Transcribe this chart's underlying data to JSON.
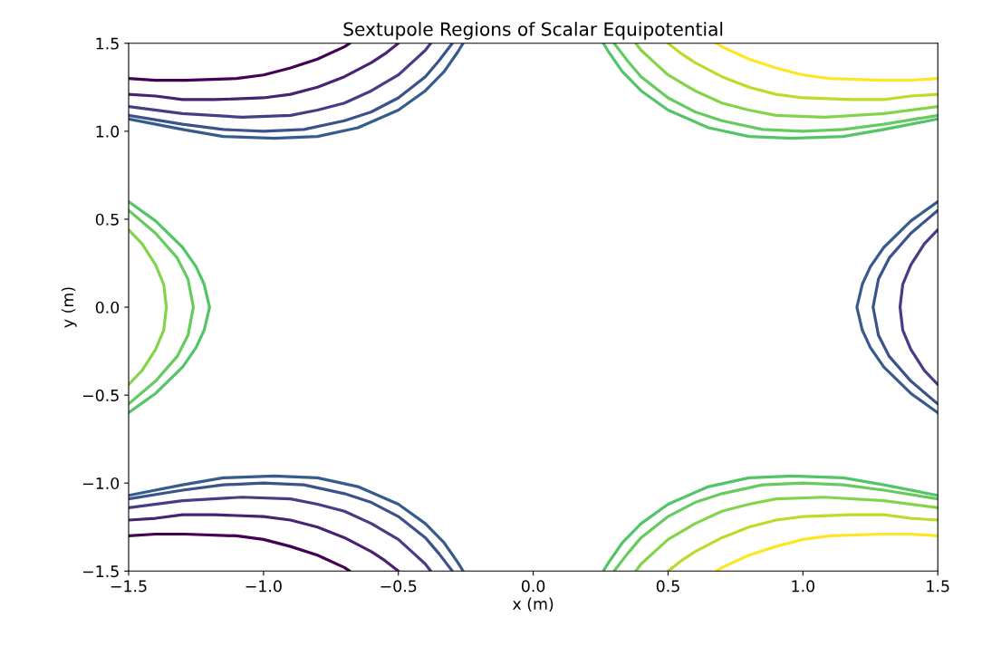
{
  "chart_data": {
    "type": "line",
    "title": "Sextupole Regions of Scalar Equipotential",
    "xlabel": "x (m)",
    "ylabel": "y (m)",
    "xlim": [
      -1.5,
      1.5
    ],
    "ylim": [
      -1.5,
      1.5
    ],
    "xticks": [
      {
        "value": -1.5,
        "label": "−1.5"
      },
      {
        "value": -1.0,
        "label": "−1.0"
      },
      {
        "value": -0.5,
        "label": "−0.5"
      },
      {
        "value": 0,
        "label": "0.0"
      },
      {
        "value": 0.5,
        "label": "0.5"
      },
      {
        "value": 1.0,
        "label": "1.0"
      },
      {
        "value": 1.5,
        "label": "1.5"
      }
    ],
    "yticks": [
      {
        "value": -1.5,
        "label": "−1.5"
      },
      {
        "value": -1.0,
        "label": "−1.0"
      },
      {
        "value": -0.5,
        "label": "−0.5"
      },
      {
        "value": 0,
        "label": "0.0"
      },
      {
        "value": 0.5,
        "label": "0.5"
      },
      {
        "value": 1.0,
        "label": "1.0"
      },
      {
        "value": 1.5,
        "label": "1.5"
      }
    ],
    "grid": false,
    "marker": "none",
    "line_style": "solid",
    "series": [
      {
        "color": "#440154",
        "x": [
          -1.5,
          -1.4,
          -1.29,
          -1.1,
          -1.0,
          -0.9,
          -0.8,
          -0.7,
          -0.68
        ],
        "values": [
          1.3,
          1.29,
          1.29,
          1.3,
          1.32,
          1.36,
          1.41,
          1.48,
          1.5
        ]
      },
      {
        "color": "#482374",
        "x": [
          -1.5,
          -1.4,
          -1.3,
          -1.18,
          -1.0,
          -0.9,
          -0.8,
          -0.7,
          -0.6,
          -0.55,
          -0.5
        ],
        "values": [
          1.21,
          1.2,
          1.18,
          1.18,
          1.19,
          1.21,
          1.25,
          1.31,
          1.39,
          1.44,
          1.5
        ]
      },
      {
        "color": "#433e85",
        "x": [
          -1.5,
          -1.3,
          -1.08,
          -0.9,
          -0.8,
          -0.7,
          -0.6,
          -0.5,
          -0.45,
          -0.4,
          -0.38
        ],
        "values": [
          1.14,
          1.1,
          1.08,
          1.09,
          1.12,
          1.16,
          1.23,
          1.32,
          1.39,
          1.46,
          1.5
        ]
      },
      {
        "color": "#3b528b",
        "x": [
          -1.5,
          -1.3,
          -1.15,
          -1.0,
          -0.85,
          -0.7,
          -0.6,
          -0.5,
          -0.4,
          -0.35,
          -0.3
        ],
        "values": [
          1.09,
          1.04,
          1.01,
          1.0,
          1.01,
          1.06,
          1.11,
          1.19,
          1.31,
          1.4,
          1.5
        ]
      },
      {
        "color": "#365c8d",
        "x": [
          -1.5,
          -1.3,
          -1.15,
          -0.96,
          -0.8,
          -0.65,
          -0.5,
          -0.4,
          -0.33,
          -0.28,
          -0.26
        ],
        "values": [
          1.07,
          1.01,
          0.97,
          0.96,
          0.97,
          1.02,
          1.12,
          1.23,
          1.34,
          1.45,
          1.5
        ]
      },
      {
        "color": "#440154",
        "x": [
          -1.5,
          -1.4,
          -1.29,
          -1.1,
          -1.0,
          -0.9,
          -0.8,
          -0.7,
          -0.68
        ],
        "values": [
          -1.3,
          -1.29,
          -1.29,
          -1.3,
          -1.32,
          -1.36,
          -1.41,
          -1.48,
          -1.5
        ]
      },
      {
        "color": "#482374",
        "x": [
          -1.5,
          -1.4,
          -1.3,
          -1.18,
          -1.0,
          -0.9,
          -0.8,
          -0.7,
          -0.6,
          -0.55,
          -0.5
        ],
        "values": [
          -1.21,
          -1.2,
          -1.18,
          -1.18,
          -1.19,
          -1.21,
          -1.25,
          -1.31,
          -1.39,
          -1.44,
          -1.5
        ]
      },
      {
        "color": "#433e85",
        "x": [
          -1.5,
          -1.3,
          -1.08,
          -0.9,
          -0.8,
          -0.7,
          -0.6,
          -0.5,
          -0.45,
          -0.4,
          -0.38
        ],
        "values": [
          -1.14,
          -1.1,
          -1.08,
          -1.09,
          -1.12,
          -1.16,
          -1.23,
          -1.32,
          -1.39,
          -1.46,
          -1.5
        ]
      },
      {
        "color": "#3b528b",
        "x": [
          -1.5,
          -1.3,
          -1.15,
          -1.0,
          -0.85,
          -0.7,
          -0.6,
          -0.5,
          -0.4,
          -0.35,
          -0.3
        ],
        "values": [
          -1.09,
          -1.04,
          -1.01,
          -1.0,
          -1.01,
          -1.06,
          -1.11,
          -1.19,
          -1.31,
          -1.4,
          -1.5
        ]
      },
      {
        "color": "#365c8d",
        "x": [
          -1.5,
          -1.3,
          -1.15,
          -0.96,
          -0.8,
          -0.65,
          -0.5,
          -0.4,
          -0.33,
          -0.28,
          -0.26
        ],
        "values": [
          -1.07,
          -1.01,
          -0.97,
          -0.96,
          -0.97,
          -1.02,
          -1.12,
          -1.23,
          -1.34,
          -1.45,
          -1.5
        ]
      },
      {
        "color": "#fde725",
        "x": [
          1.5,
          1.4,
          1.29,
          1.1,
          1.0,
          0.9,
          0.8,
          0.7,
          0.68
        ],
        "values": [
          1.3,
          1.29,
          1.29,
          1.3,
          1.32,
          1.36,
          1.41,
          1.48,
          1.5
        ]
      },
      {
        "color": "#b8de29",
        "x": [
          1.5,
          1.4,
          1.3,
          1.18,
          1.0,
          0.9,
          0.8,
          0.7,
          0.6,
          0.55,
          0.5
        ],
        "values": [
          1.21,
          1.2,
          1.18,
          1.18,
          1.19,
          1.21,
          1.25,
          1.31,
          1.39,
          1.44,
          1.5
        ]
      },
      {
        "color": "#84d44b",
        "x": [
          1.5,
          1.3,
          1.08,
          0.9,
          0.8,
          0.7,
          0.6,
          0.5,
          0.45,
          0.4,
          0.38
        ],
        "values": [
          1.14,
          1.1,
          1.08,
          1.09,
          1.12,
          1.16,
          1.23,
          1.32,
          1.39,
          1.46,
          1.5
        ]
      },
      {
        "color": "#65cb5e",
        "x": [
          1.5,
          1.3,
          1.15,
          1.0,
          0.85,
          0.7,
          0.6,
          0.5,
          0.4,
          0.35,
          0.3
        ],
        "values": [
          1.09,
          1.04,
          1.01,
          1.0,
          1.01,
          1.06,
          1.11,
          1.19,
          1.31,
          1.4,
          1.5
        ]
      },
      {
        "color": "#52c569",
        "x": [
          1.5,
          1.3,
          1.15,
          0.96,
          0.8,
          0.65,
          0.5,
          0.4,
          0.33,
          0.28,
          0.26
        ],
        "values": [
          1.07,
          1.01,
          0.97,
          0.96,
          0.97,
          1.02,
          1.12,
          1.23,
          1.34,
          1.45,
          1.5
        ]
      },
      {
        "color": "#fde725",
        "x": [
          1.5,
          1.4,
          1.29,
          1.1,
          1.0,
          0.9,
          0.8,
          0.7,
          0.68
        ],
        "values": [
          -1.3,
          -1.29,
          -1.29,
          -1.3,
          -1.32,
          -1.36,
          -1.41,
          -1.48,
          -1.5
        ]
      },
      {
        "color": "#b8de29",
        "x": [
          1.5,
          1.4,
          1.3,
          1.18,
          1.0,
          0.9,
          0.8,
          0.7,
          0.6,
          0.55,
          0.5
        ],
        "values": [
          -1.21,
          -1.2,
          -1.18,
          -1.18,
          -1.19,
          -1.21,
          -1.25,
          -1.31,
          -1.39,
          -1.44,
          -1.5
        ]
      },
      {
        "color": "#84d44b",
        "x": [
          1.5,
          1.3,
          1.08,
          0.9,
          0.8,
          0.7,
          0.6,
          0.5,
          0.45,
          0.4,
          0.38
        ],
        "values": [
          -1.14,
          -1.1,
          -1.08,
          -1.09,
          -1.12,
          -1.16,
          -1.23,
          -1.32,
          -1.39,
          -1.46,
          -1.5
        ]
      },
      {
        "color": "#65cb5e",
        "x": [
          1.5,
          1.3,
          1.15,
          1.0,
          0.85,
          0.7,
          0.6,
          0.5,
          0.4,
          0.35,
          0.3
        ],
        "values": [
          -1.09,
          -1.04,
          -1.01,
          -1.0,
          -1.01,
          -1.06,
          -1.11,
          -1.19,
          -1.31,
          -1.4,
          -1.5
        ]
      },
      {
        "color": "#52c569",
        "x": [
          1.5,
          1.3,
          1.15,
          0.96,
          0.8,
          0.65,
          0.5,
          0.4,
          0.33,
          0.28,
          0.26
        ],
        "values": [
          -1.07,
          -1.01,
          -0.97,
          -0.96,
          -0.97,
          -1.02,
          -1.12,
          -1.23,
          -1.34,
          -1.45,
          -1.5
        ]
      },
      {
        "color": "#52c569",
        "x": [
          -1.5,
          -1.4,
          -1.3,
          -1.25,
          -1.22,
          -1.2,
          -1.22,
          -1.25,
          -1.3,
          -1.4,
          -1.5
        ],
        "values": [
          -0.6,
          -0.49,
          -0.34,
          -0.23,
          -0.13,
          0,
          0.13,
          0.23,
          0.34,
          0.49,
          0.6
        ]
      },
      {
        "color": "#65cb5e",
        "x": [
          -1.5,
          -1.4,
          -1.32,
          -1.28,
          -1.26,
          -1.28,
          -1.32,
          -1.4,
          -1.5
        ],
        "values": [
          -0.55,
          -0.42,
          -0.28,
          -0.16,
          0,
          0.16,
          0.28,
          0.42,
          0.55
        ]
      },
      {
        "color": "#84d44b",
        "x": [
          -1.5,
          -1.45,
          -1.4,
          -1.37,
          -1.36,
          -1.37,
          -1.4,
          -1.45,
          -1.5
        ],
        "values": [
          -0.44,
          -0.36,
          -0.24,
          -0.13,
          0,
          0.13,
          0.24,
          0.36,
          0.44
        ]
      },
      {
        "color": "#365c8d",
        "x": [
          1.5,
          1.4,
          1.3,
          1.25,
          1.22,
          1.2,
          1.22,
          1.25,
          1.3,
          1.4,
          1.5
        ],
        "values": [
          -0.6,
          -0.49,
          -0.34,
          -0.23,
          -0.13,
          0,
          0.13,
          0.23,
          0.34,
          0.49,
          0.6
        ]
      },
      {
        "color": "#3b528b",
        "x": [
          1.5,
          1.4,
          1.32,
          1.28,
          1.26,
          1.28,
          1.32,
          1.4,
          1.5
        ],
        "values": [
          -0.55,
          -0.42,
          -0.28,
          -0.16,
          0,
          0.16,
          0.28,
          0.42,
          0.55
        ]
      },
      {
        "color": "#433e85",
        "x": [
          1.5,
          1.45,
          1.4,
          1.37,
          1.36,
          1.37,
          1.4,
          1.45,
          1.5
        ],
        "values": [
          -0.44,
          -0.36,
          -0.24,
          -0.13,
          0,
          0.13,
          0.24,
          0.36,
          0.44
        ]
      }
    ]
  }
}
